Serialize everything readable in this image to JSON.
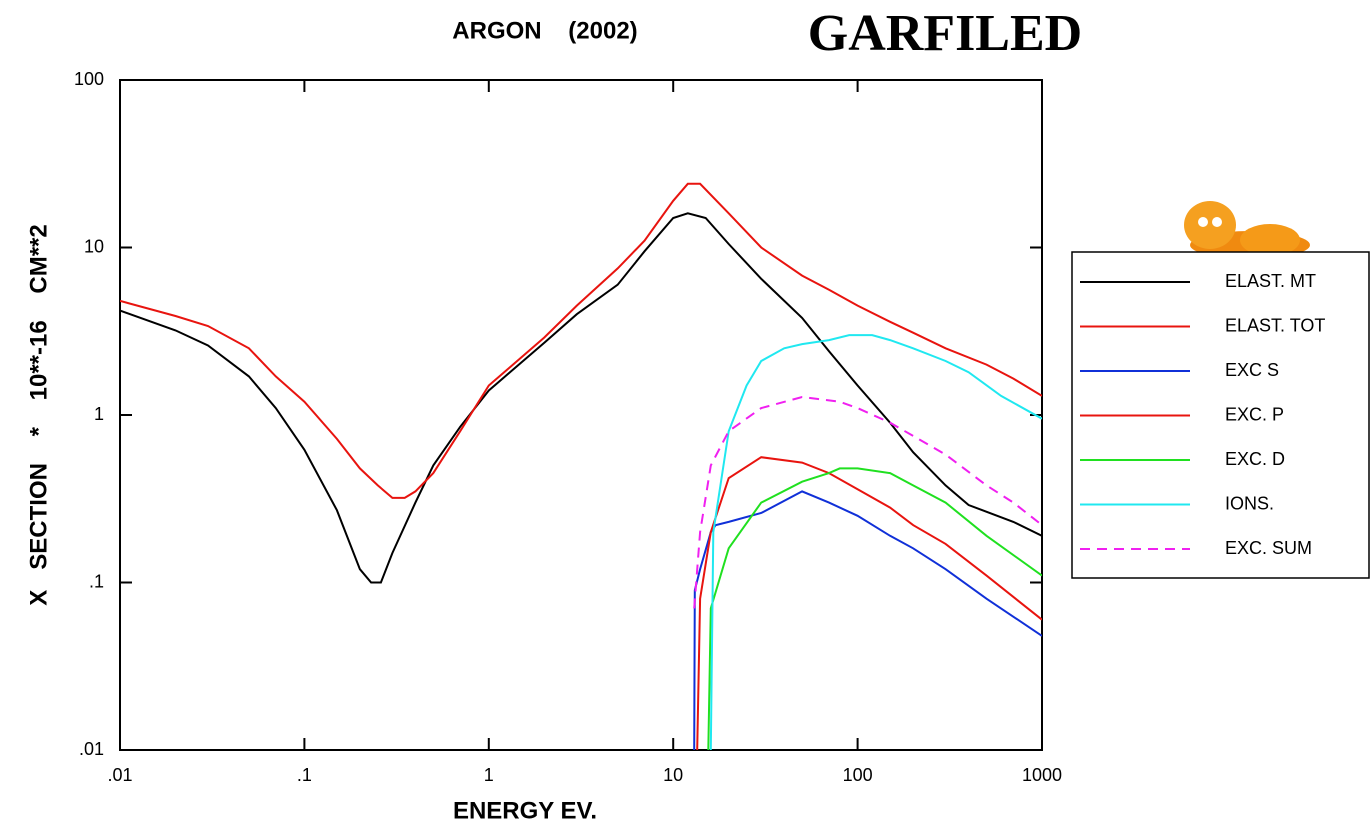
{
  "chart_data": {
    "type": "line",
    "title": "ARGON    (2002)",
    "subtitle": "GARFILED",
    "x_label": "ENERGY EV.",
    "y_label": "X   SECTION    *    10**-16    CM**2",
    "xscale": "log",
    "yscale": "log",
    "xlim": [
      0.01,
      1000
    ],
    "ylim": [
      0.01,
      100
    ],
    "xticks": [
      {
        "value": 0.01,
        "label": ".01"
      },
      {
        "value": 0.1,
        "label": ".1"
      },
      1,
      10,
      100,
      1000
    ],
    "yticks": [
      {
        "value": 0.01,
        "label": ".01"
      },
      {
        "value": 0.1,
        "label": ".1"
      },
      1,
      10,
      100
    ],
    "legend": "right",
    "series": [
      {
        "name": "ELAST. MT",
        "color": "#000000",
        "line_style": "solid",
        "x": [
          0.01,
          0.02,
          0.03,
          0.05,
          0.07,
          0.1,
          0.15,
          0.2,
          0.23,
          0.26,
          0.3,
          0.4,
          0.5,
          0.7,
          1,
          2,
          3,
          5,
          7,
          10,
          12,
          15,
          20,
          30,
          50,
          70,
          100,
          150,
          200,
          300,
          400,
          700,
          1000
        ],
        "values": [
          4.2,
          3.2,
          2.6,
          1.7,
          1.1,
          0.62,
          0.27,
          0.12,
          0.1,
          0.1,
          0.15,
          0.3,
          0.5,
          0.85,
          1.4,
          2.7,
          4,
          6,
          9.5,
          15,
          16,
          15,
          10.5,
          6.5,
          3.8,
          2.4,
          1.5,
          0.9,
          0.6,
          0.38,
          0.29,
          0.23,
          0.19
        ]
      },
      {
        "name": "ELAST. TOT",
        "color": "#e8140f",
        "line_style": "solid",
        "x": [
          0.01,
          0.02,
          0.03,
          0.05,
          0.07,
          0.1,
          0.15,
          0.2,
          0.25,
          0.3,
          0.35,
          0.4,
          0.5,
          0.7,
          1,
          2,
          3,
          5,
          7,
          10,
          12,
          14,
          20,
          30,
          50,
          70,
          100,
          150,
          200,
          300,
          500,
          700,
          1000
        ],
        "values": [
          4.8,
          3.9,
          3.4,
          2.5,
          1.7,
          1.2,
          0.72,
          0.48,
          0.38,
          0.32,
          0.32,
          0.35,
          0.45,
          0.8,
          1.5,
          2.9,
          4.5,
          7.5,
          11,
          19,
          24,
          24,
          16,
          10,
          6.8,
          5.6,
          4.5,
          3.6,
          3.1,
          2.5,
          2,
          1.65,
          1.3
        ]
      },
      {
        "name": "EXC S",
        "color": "#1030d8",
        "line_style": "solid",
        "x": [
          13,
          13.1,
          14,
          16,
          17,
          20,
          30,
          50,
          70,
          100,
          150,
          200,
          300,
          500,
          1000
        ],
        "values": [
          0.01,
          0.09,
          0.12,
          0.2,
          0.22,
          0.23,
          0.26,
          0.35,
          0.3,
          0.25,
          0.19,
          0.16,
          0.12,
          0.08,
          0.048
        ]
      },
      {
        "name": "EXC. P",
        "color": "#e8140f",
        "line_style": "solid",
        "x": [
          13.5,
          14,
          16,
          20,
          30,
          50,
          70,
          100,
          150,
          200,
          300,
          500,
          1000
        ],
        "values": [
          0.01,
          0.08,
          0.2,
          0.42,
          0.56,
          0.52,
          0.45,
          0.36,
          0.28,
          0.22,
          0.17,
          0.11,
          0.06
        ]
      },
      {
        "name": "EXC. D",
        "color": "#20e020",
        "line_style": "solid",
        "x": [
          15.5,
          16,
          20,
          30,
          50,
          70,
          80,
          100,
          150,
          200,
          300,
          500,
          1000
        ],
        "values": [
          0.01,
          0.07,
          0.16,
          0.3,
          0.4,
          0.45,
          0.48,
          0.48,
          0.45,
          0.38,
          0.3,
          0.19,
          0.11
        ]
      },
      {
        "name": "IONS.",
        "color": "#20e8f0",
        "line_style": "solid",
        "x": [
          16,
          16.5,
          20,
          25,
          30,
          40,
          50,
          70,
          90,
          120,
          150,
          200,
          300,
          400,
          600,
          1000
        ],
        "values": [
          0.01,
          0.2,
          0.8,
          1.5,
          2.1,
          2.5,
          2.65,
          2.8,
          3,
          3,
          2.8,
          2.5,
          2.1,
          1.8,
          1.3,
          0.95
        ]
      },
      {
        "name": "EXC. SUM",
        "color": "#f020f0",
        "line_style": "dashed",
        "x": [
          13,
          14,
          16,
          20,
          30,
          50,
          80,
          100,
          150,
          200,
          300,
          500,
          700,
          1000
        ],
        "values": [
          0.07,
          0.2,
          0.5,
          0.8,
          1.1,
          1.28,
          1.2,
          1.1,
          0.9,
          0.75,
          0.58,
          0.38,
          0.3,
          0.22
        ]
      }
    ]
  }
}
